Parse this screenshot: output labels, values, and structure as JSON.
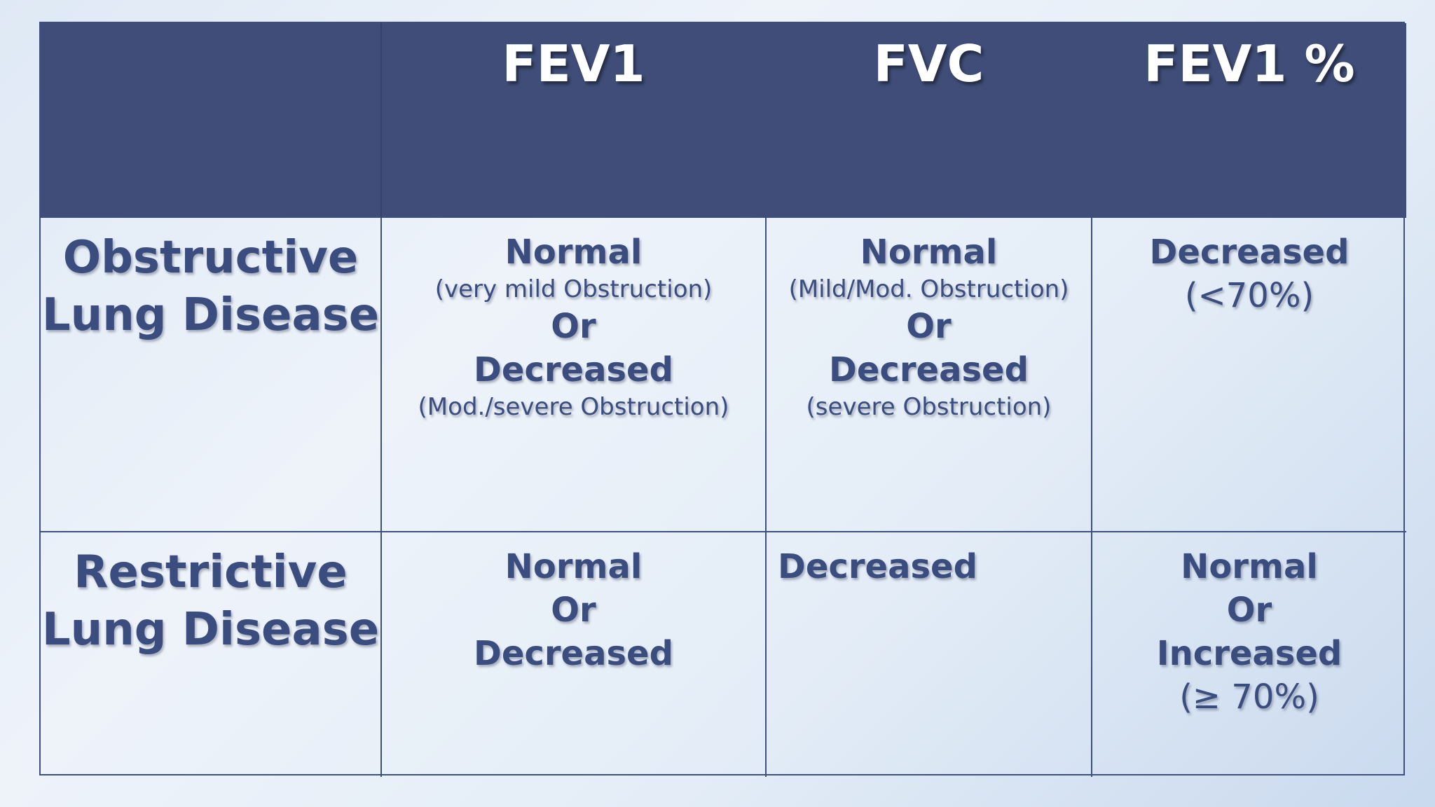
{
  "table": {
    "headers": [
      "",
      "FEV1",
      "FVC",
      "FEV1 %"
    ],
    "rows": [
      {
        "label_lines": [
          "Obstructive",
          "Lung Disease"
        ],
        "fev1": {
          "line1": "Normal",
          "line2": "(very mild Obstruction)",
          "line3": "Or",
          "line4": "Decreased",
          "line5": "(Mod./severe Obstruction)"
        },
        "fvc": {
          "line1": "Normal",
          "line2": "(Mild/Mod. Obstruction)",
          "line3": "Or",
          "line4": "Decreased",
          "line5": "(severe Obstruction)"
        },
        "fev1_pct": {
          "line1": "Decreased",
          "line2": "(<70%)"
        }
      },
      {
        "label_lines": [
          "Restrictive",
          "Lung Disease"
        ],
        "fev1": {
          "line1": "Normal",
          "line2": "Or",
          "line3": "Decreased"
        },
        "fvc": {
          "line1": "Decreased"
        },
        "fev1_pct": {
          "line1": "Normal",
          "line2": "Or",
          "line3": "Increased",
          "line4": "(≥ 70%)"
        }
      }
    ]
  },
  "colors": {
    "header_bg": "#3f4d78",
    "text": "#3b4c7e",
    "border": "#3d4f7e"
  }
}
